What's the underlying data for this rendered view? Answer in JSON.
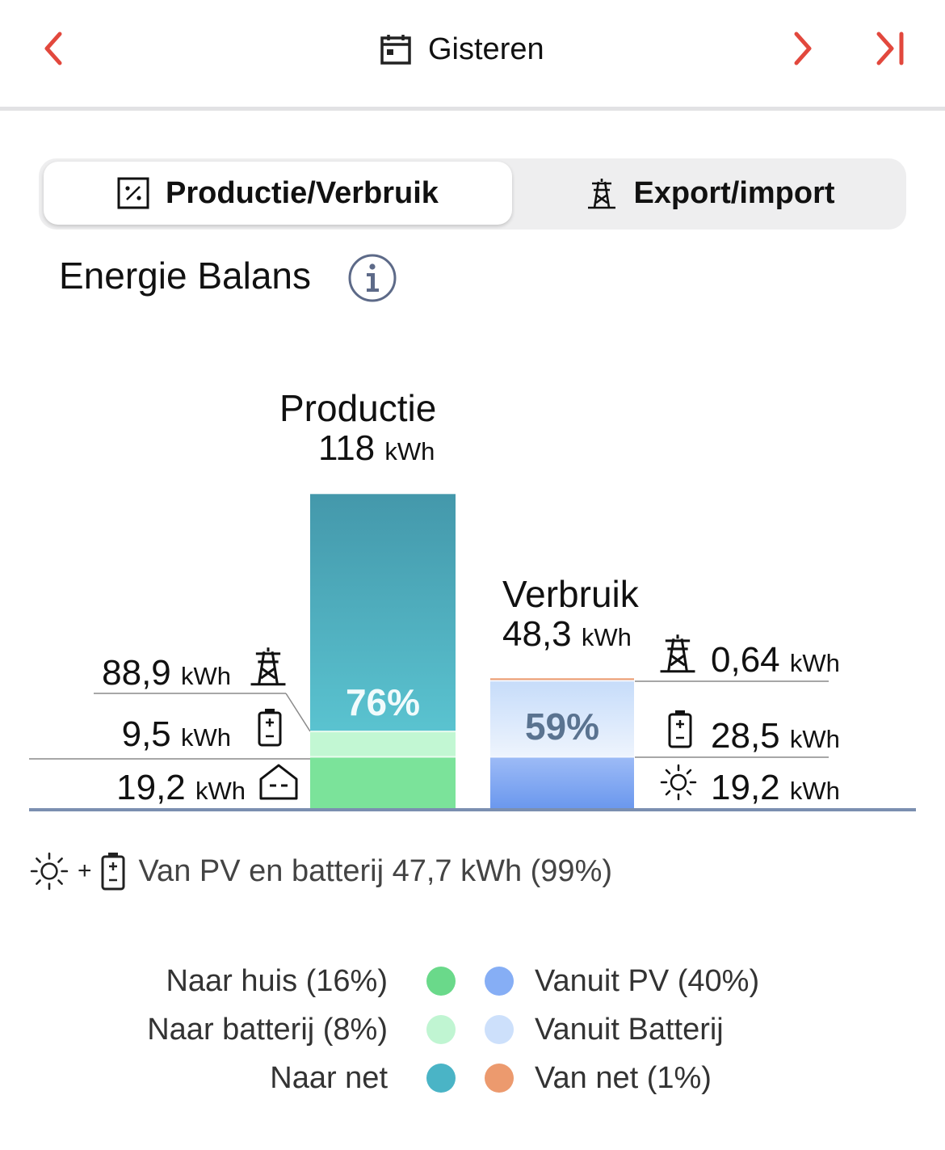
{
  "header": {
    "title": "Gisteren",
    "accent_color": "#e2483d",
    "prev_icon": "chevron-left-icon",
    "next_icon": "chevron-right-icon",
    "last_icon": "skip-to-end-icon",
    "calendar_icon": "calendar-icon"
  },
  "tabs": [
    {
      "label": "Productie/Verbruik",
      "icon": "percentage-box-icon",
      "selected": true
    },
    {
      "label": "Export/import",
      "icon": "power-pylon-icon",
      "selected": false
    }
  ],
  "section": {
    "title": "Energie Balans",
    "info_icon": "info-icon"
  },
  "chart_data": {
    "type": "bar",
    "stacked": true,
    "bars": [
      {
        "name": "Productie",
        "total": "118",
        "unit": "kWh",
        "percent_label": "76%",
        "segments": [
          {
            "label": "Naar huis",
            "value": 19.2,
            "display": "19,2",
            "unit": "kWh",
            "color": "#7be39a",
            "icon": "house-icon"
          },
          {
            "label": "Naar batterij",
            "value": 9.5,
            "display": "9,5",
            "unit": "kWh",
            "color": "#c2f7d3",
            "icon": "battery-icon"
          },
          {
            "label": "Naar net",
            "value": 88.9,
            "display": "88,9",
            "unit": "kWh",
            "color": "#4ab4c6",
            "icon": "power-pylon-icon"
          }
        ]
      },
      {
        "name": "Verbruik",
        "total": "48,3",
        "unit": "kWh",
        "percent_label": "59%",
        "segments": [
          {
            "label": "Vanuit PV",
            "value": 19.2,
            "display": "19,2",
            "unit": "kWh",
            "color": "#8aa8f3",
            "icon": "sun-icon"
          },
          {
            "label": "Vanuit Batterij",
            "value": 28.5,
            "display": "28,5",
            "unit": "kWh",
            "color": "#cde0fb",
            "icon": "battery-icon"
          },
          {
            "label": "Van net",
            "value": 0.64,
            "display": "0,64",
            "unit": "kWh",
            "color": "#ec9a6e",
            "icon": "power-pylon-icon"
          }
        ]
      }
    ]
  },
  "summary": {
    "plus": "+",
    "text": "Van PV en batterij 47,7 kWh (99%)"
  },
  "legend": {
    "left": [
      {
        "label": "Naar huis (16%)",
        "color": "#6ad98a"
      },
      {
        "label": "Naar batterij (8%)",
        "color": "#c0f5d2"
      },
      {
        "label": "Naar net",
        "color": "#4ab4c6"
      }
    ],
    "right": [
      {
        "label": "Vanuit PV (40%)",
        "color": "#86aef5"
      },
      {
        "label": "Vanuit Batterij",
        "color": "#cde0fb"
      },
      {
        "label": "Van net (1%)",
        "color": "#ec9a6e"
      }
    ]
  }
}
